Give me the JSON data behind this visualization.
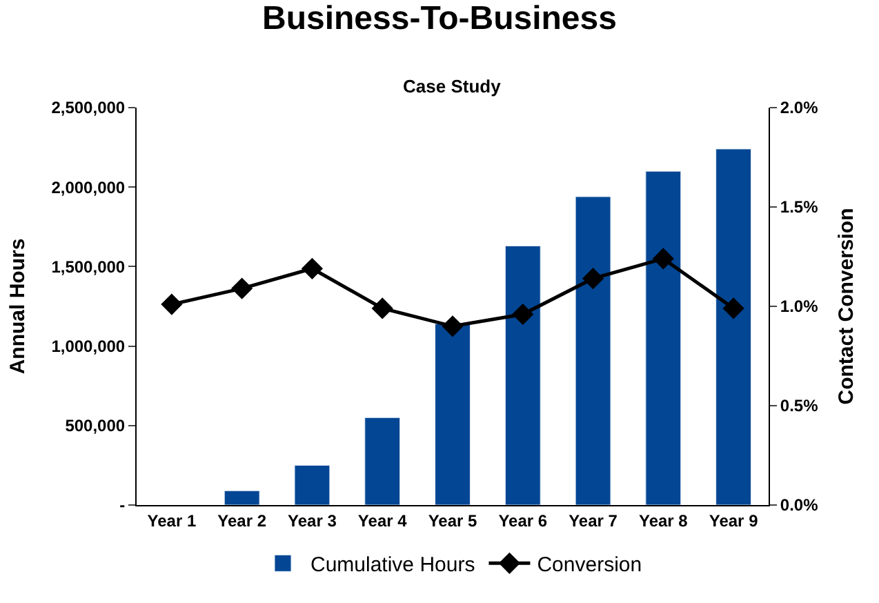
{
  "chart_data": {
    "type": "bar",
    "title": "Business-To-Business",
    "subtitle": "Case Study",
    "ylabel": "Annual Hours",
    "y2label": "Contact Conversion",
    "categories": [
      "Year 1",
      "Year 2",
      "Year 3",
      "Year 4",
      "Year 5",
      "Year 6",
      "Year 7",
      "Year 8",
      "Year 9"
    ],
    "series": [
      {
        "name": "Cumulative Hours",
        "color": "#034694",
        "values": [
          null,
          90000,
          250000,
          550000,
          1140000,
          1630000,
          1940000,
          2100000,
          2240000
        ]
      },
      {
        "name": "Conversion",
        "type": "line",
        "axis": "y2",
        "color": "#000000",
        "marker": "diamond",
        "values": [
          1.01,
          1.09,
          1.19,
          0.99,
          0.9,
          0.96,
          1.14,
          1.24,
          0.99
        ]
      }
    ],
    "ylim": [
      0,
      2500000
    ],
    "yticks": [
      {
        "value": 0,
        "label": "-"
      },
      {
        "value": 500000,
        "label": "500,000"
      },
      {
        "value": 1000000,
        "label": "1,000,000"
      },
      {
        "value": 1500000,
        "label": "1,500,000"
      },
      {
        "value": 2000000,
        "label": "2,000,000"
      },
      {
        "value": 2500000,
        "label": "2,500,000"
      }
    ],
    "y2lim": [
      0,
      2.0
    ],
    "y2ticks": [
      {
        "value": 0,
        "label": "0.0%"
      },
      {
        "value": 0.5,
        "label": "0.5%"
      },
      {
        "value": 1.0,
        "label": "1.0%"
      },
      {
        "value": 1.5,
        "label": "1.5%"
      },
      {
        "value": 2.0,
        "label": "2.0%"
      }
    ],
    "legend": "bottom"
  }
}
